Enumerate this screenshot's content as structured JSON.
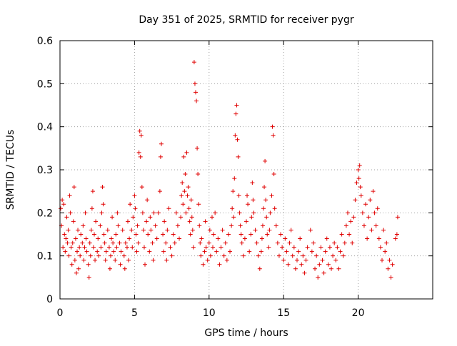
{
  "chart_data": {
    "type": "scatter",
    "title": "Day 351 of 2025, SRMTID for receiver pygr",
    "xlabel": "GPS time / hours",
    "ylabel": "SRMTID / TECUs",
    "xlim": [
      0,
      25
    ],
    "ylim": [
      0,
      0.6
    ],
    "xticks": [
      0,
      5,
      10,
      15,
      20
    ],
    "yticks": [
      0,
      0.1,
      0.2,
      0.3,
      0.4,
      0.5,
      0.6
    ],
    "xtick_labels": [
      "0",
      "5",
      "10",
      "15",
      "20"
    ],
    "ytick_labels": [
      "0",
      "0.1",
      "0.2",
      "0.3",
      "0.4",
      "0.5",
      "0.6"
    ],
    "marker": "+",
    "grid": true,
    "colors": {
      "series": "#e00000"
    },
    "series": [
      {
        "name": "SRMTID",
        "points": [
          [
            0.05,
            0.21
          ],
          [
            0.1,
            0.17
          ],
          [
            0.15,
            0.23
          ],
          [
            0.2,
            0.12
          ],
          [
            0.25,
            0.22
          ],
          [
            0.3,
            0.15
          ],
          [
            0.35,
            0.11
          ],
          [
            0.4,
            0.14
          ],
          [
            0.45,
            0.19
          ],
          [
            0.5,
            0.13
          ],
          [
            0.55,
            0.16
          ],
          [
            0.6,
            0.1
          ],
          [
            0.65,
            0.24
          ],
          [
            0.7,
            0.2
          ],
          [
            0.75,
            0.12
          ],
          [
            0.8,
            0.08
          ],
          [
            0.85,
            0.13
          ],
          [
            0.9,
            0.18
          ],
          [
            0.95,
            0.26
          ],
          [
            1.0,
            0.09
          ],
          [
            1.05,
            0.14
          ],
          [
            1.1,
            0.06
          ],
          [
            1.15,
            0.11
          ],
          [
            1.2,
            0.16
          ],
          [
            1.25,
            0.07
          ],
          [
            1.3,
            0.12
          ],
          [
            1.35,
            0.1
          ],
          [
            1.4,
            0.15
          ],
          [
            1.5,
            0.13
          ],
          [
            1.55,
            0.17
          ],
          [
            1.6,
            0.09
          ],
          [
            1.65,
            0.12
          ],
          [
            1.7,
            0.2
          ],
          [
            1.75,
            0.14
          ],
          [
            1.8,
            0.11
          ],
          [
            1.9,
            0.08
          ],
          [
            1.95,
            0.05
          ],
          [
            2.0,
            0.13
          ],
          [
            2.05,
            0.1
          ],
          [
            2.1,
            0.16
          ],
          [
            2.15,
            0.21
          ],
          [
            2.2,
            0.25
          ],
          [
            2.25,
            0.12
          ],
          [
            2.3,
            0.15
          ],
          [
            2.35,
            0.09
          ],
          [
            2.4,
            0.18
          ],
          [
            2.5,
            0.11
          ],
          [
            2.55,
            0.14
          ],
          [
            2.6,
            0.1
          ],
          [
            2.7,
            0.17
          ],
          [
            2.75,
            0.12
          ],
          [
            2.8,
            0.2
          ],
          [
            2.85,
            0.26
          ],
          [
            2.9,
            0.22
          ],
          [
            2.95,
            0.15
          ],
          [
            3.0,
            0.13
          ],
          [
            3.05,
            0.09
          ],
          [
            3.1,
            0.11
          ],
          [
            3.2,
            0.16
          ],
          [
            3.3,
            0.12
          ],
          [
            3.35,
            0.07
          ],
          [
            3.4,
            0.1
          ],
          [
            3.45,
            0.14
          ],
          [
            3.5,
            0.19
          ],
          [
            3.55,
            0.13
          ],
          [
            3.6,
            0.11
          ],
          [
            3.7,
            0.09
          ],
          [
            3.75,
            0.15
          ],
          [
            3.8,
            0.12
          ],
          [
            3.85,
            0.2
          ],
          [
            3.9,
            0.17
          ],
          [
            4.0,
            0.13
          ],
          [
            4.05,
            0.08
          ],
          [
            4.1,
            0.11
          ],
          [
            4.2,
            0.16
          ],
          [
            4.3,
            0.1
          ],
          [
            4.35,
            0.07
          ],
          [
            4.4,
            0.13
          ],
          [
            4.5,
            0.12
          ],
          [
            4.55,
            0.18
          ],
          [
            4.6,
            0.09
          ],
          [
            4.65,
            0.14
          ],
          [
            4.7,
            0.22
          ],
          [
            4.8,
            0.16
          ],
          [
            4.85,
            0.12
          ],
          [
            4.9,
            0.19
          ],
          [
            5.0,
            0.24
          ],
          [
            5.05,
            0.21
          ],
          [
            5.1,
            0.15
          ],
          [
            5.15,
            0.11
          ],
          [
            5.2,
            0.17
          ],
          [
            5.25,
            0.13
          ],
          [
            5.3,
            0.34
          ],
          [
            5.35,
            0.39
          ],
          [
            5.4,
            0.33
          ],
          [
            5.45,
            0.38
          ],
          [
            5.5,
            0.26
          ],
          [
            5.55,
            0.2
          ],
          [
            5.6,
            0.16
          ],
          [
            5.65,
            0.12
          ],
          [
            5.7,
            0.08
          ],
          [
            5.8,
            0.18
          ],
          [
            5.85,
            0.23
          ],
          [
            5.9,
            0.15
          ],
          [
            6.0,
            0.11
          ],
          [
            6.05,
            0.19
          ],
          [
            6.1,
            0.16
          ],
          [
            6.2,
            0.13
          ],
          [
            6.25,
            0.09
          ],
          [
            6.3,
            0.2
          ],
          [
            6.4,
            0.17
          ],
          [
            6.5,
            0.14
          ],
          [
            6.6,
            0.2
          ],
          [
            6.7,
            0.25
          ],
          [
            6.75,
            0.33
          ],
          [
            6.8,
            0.36
          ],
          [
            6.9,
            0.15
          ],
          [
            6.95,
            0.11
          ],
          [
            7.0,
            0.18
          ],
          [
            7.1,
            0.13
          ],
          [
            7.15,
            0.09
          ],
          [
            7.2,
            0.16
          ],
          [
            7.3,
            0.21
          ],
          [
            7.4,
            0.12
          ],
          [
            7.5,
            0.1
          ],
          [
            7.6,
            0.15
          ],
          [
            7.7,
            0.13
          ],
          [
            7.8,
            0.2
          ],
          [
            7.9,
            0.17
          ],
          [
            8.0,
            0.14
          ],
          [
            8.1,
            0.19
          ],
          [
            8.15,
            0.24
          ],
          [
            8.2,
            0.27
          ],
          [
            8.25,
            0.22
          ],
          [
            8.3,
            0.33
          ],
          [
            8.35,
            0.25
          ],
          [
            8.4,
            0.29
          ],
          [
            8.45,
            0.2
          ],
          [
            8.5,
            0.34
          ],
          [
            8.55,
            0.24
          ],
          [
            8.6,
            0.26
          ],
          [
            8.65,
            0.21
          ],
          [
            8.7,
            0.18
          ],
          [
            8.75,
            0.15
          ],
          [
            8.8,
            0.23
          ],
          [
            8.85,
            0.19
          ],
          [
            8.9,
            0.16
          ],
          [
            8.95,
            0.12
          ],
          [
            9.0,
            0.55
          ],
          [
            9.05,
            0.5
          ],
          [
            9.1,
            0.48
          ],
          [
            9.15,
            0.46
          ],
          [
            9.2,
            0.35
          ],
          [
            9.25,
            0.29
          ],
          [
            9.3,
            0.22
          ],
          [
            9.35,
            0.17
          ],
          [
            9.4,
            0.13
          ],
          [
            9.45,
            0.1
          ],
          [
            9.5,
            0.14
          ],
          [
            9.6,
            0.08
          ],
          [
            9.7,
            0.11
          ],
          [
            9.75,
            0.18
          ],
          [
            9.8,
            0.12
          ],
          [
            9.9,
            0.09
          ],
          [
            10.0,
            0.13
          ],
          [
            10.05,
            0.16
          ],
          [
            10.1,
            0.1
          ],
          [
            10.2,
            0.19
          ],
          [
            10.25,
            0.12
          ],
          [
            10.3,
            0.15
          ],
          [
            10.4,
            0.2
          ],
          [
            10.5,
            0.11
          ],
          [
            10.6,
            0.14
          ],
          [
            10.7,
            0.08
          ],
          [
            10.8,
            0.12
          ],
          [
            10.9,
            0.16
          ],
          [
            11.0,
            0.1
          ],
          [
            11.1,
            0.13
          ],
          [
            11.2,
            0.09
          ],
          [
            11.3,
            0.15
          ],
          [
            11.4,
            0.11
          ],
          [
            11.5,
            0.17
          ],
          [
            11.55,
            0.21
          ],
          [
            11.6,
            0.25
          ],
          [
            11.65,
            0.19
          ],
          [
            11.7,
            0.28
          ],
          [
            11.75,
            0.38
          ],
          [
            11.8,
            0.43
          ],
          [
            11.85,
            0.45
          ],
          [
            11.9,
            0.37
          ],
          [
            11.95,
            0.33
          ],
          [
            12.0,
            0.24
          ],
          [
            12.05,
            0.2
          ],
          [
            12.1,
            0.17
          ],
          [
            12.15,
            0.15
          ],
          [
            12.2,
            0.13
          ],
          [
            12.3,
            0.1
          ],
          [
            12.4,
            0.14
          ],
          [
            12.5,
            0.18
          ],
          [
            12.55,
            0.24
          ],
          [
            12.6,
            0.22
          ],
          [
            12.7,
            0.11
          ],
          [
            12.8,
            0.15
          ],
          [
            12.85,
            0.19
          ],
          [
            12.9,
            0.27
          ],
          [
            12.95,
            0.23
          ],
          [
            13.0,
            0.2
          ],
          [
            13.1,
            0.16
          ],
          [
            13.2,
            0.13
          ],
          [
            13.3,
            0.1
          ],
          [
            13.4,
            0.07
          ],
          [
            13.5,
            0.11
          ],
          [
            13.55,
            0.14
          ],
          [
            13.6,
            0.17
          ],
          [
            13.65,
            0.21
          ],
          [
            13.7,
            0.26
          ],
          [
            13.75,
            0.32
          ],
          [
            13.8,
            0.23
          ],
          [
            13.85,
            0.19
          ],
          [
            13.9,
            0.15
          ],
          [
            14.0,
            0.12
          ],
          [
            14.05,
            0.16
          ],
          [
            14.1,
            0.2
          ],
          [
            14.2,
            0.24
          ],
          [
            14.25,
            0.4
          ],
          [
            14.3,
            0.38
          ],
          [
            14.35,
            0.29
          ],
          [
            14.4,
            0.21
          ],
          [
            14.5,
            0.17
          ],
          [
            14.6,
            0.13
          ],
          [
            14.7,
            0.1
          ],
          [
            14.8,
            0.15
          ],
          [
            14.9,
            0.12
          ],
          [
            15.0,
            0.09
          ],
          [
            15.1,
            0.14
          ],
          [
            15.2,
            0.11
          ],
          [
            15.3,
            0.08
          ],
          [
            15.4,
            0.13
          ],
          [
            15.5,
            0.16
          ],
          [
            15.6,
            0.1
          ],
          [
            15.7,
            0.12
          ],
          [
            15.8,
            0.07
          ],
          [
            15.9,
            0.09
          ],
          [
            16.0,
            0.11
          ],
          [
            16.1,
            0.14
          ],
          [
            16.2,
            0.08
          ],
          [
            16.3,
            0.1
          ],
          [
            16.4,
            0.06
          ],
          [
            16.5,
            0.09
          ],
          [
            16.6,
            0.12
          ],
          [
            16.8,
            0.16
          ],
          [
            16.9,
            0.11
          ],
          [
            17.0,
            0.13
          ],
          [
            17.1,
            0.07
          ],
          [
            17.2,
            0.1
          ],
          [
            17.3,
            0.05
          ],
          [
            17.4,
            0.08
          ],
          [
            17.5,
            0.12
          ],
          [
            17.6,
            0.09
          ],
          [
            17.7,
            0.06
          ],
          [
            17.8,
            0.11
          ],
          [
            17.9,
            0.14
          ],
          [
            18.0,
            0.08
          ],
          [
            18.1,
            0.12
          ],
          [
            18.2,
            0.07
          ],
          [
            18.3,
            0.1
          ],
          [
            18.4,
            0.13
          ],
          [
            18.5,
            0.09
          ],
          [
            18.6,
            0.12
          ],
          [
            18.7,
            0.07
          ],
          [
            18.8,
            0.11
          ],
          [
            18.9,
            0.15
          ],
          [
            19.0,
            0.1
          ],
          [
            19.1,
            0.13
          ],
          [
            19.2,
            0.17
          ],
          [
            19.3,
            0.2
          ],
          [
            19.4,
            0.15
          ],
          [
            19.5,
            0.18
          ],
          [
            19.6,
            0.13
          ],
          [
            19.7,
            0.19
          ],
          [
            19.8,
            0.23
          ],
          [
            19.9,
            0.27
          ],
          [
            20.0,
            0.3
          ],
          [
            20.05,
            0.28
          ],
          [
            20.1,
            0.31
          ],
          [
            20.15,
            0.26
          ],
          [
            20.2,
            0.24
          ],
          [
            20.3,
            0.2
          ],
          [
            20.4,
            0.17
          ],
          [
            20.5,
            0.22
          ],
          [
            20.6,
            0.14
          ],
          [
            20.7,
            0.19
          ],
          [
            20.8,
            0.23
          ],
          [
            20.9,
            0.16
          ],
          [
            21.0,
            0.25
          ],
          [
            21.1,
            0.2
          ],
          [
            21.2,
            0.17
          ],
          [
            21.3,
            0.21
          ],
          [
            21.4,
            0.14
          ],
          [
            21.5,
            0.12
          ],
          [
            21.6,
            0.09
          ],
          [
            21.7,
            0.16
          ],
          [
            21.8,
            0.11
          ],
          [
            21.9,
            0.13
          ],
          [
            22.0,
            0.07
          ],
          [
            22.1,
            0.09
          ],
          [
            22.2,
            0.05
          ],
          [
            22.3,
            0.08
          ],
          [
            22.5,
            0.14
          ],
          [
            22.6,
            0.15
          ],
          [
            22.65,
            0.19
          ]
        ]
      }
    ]
  }
}
